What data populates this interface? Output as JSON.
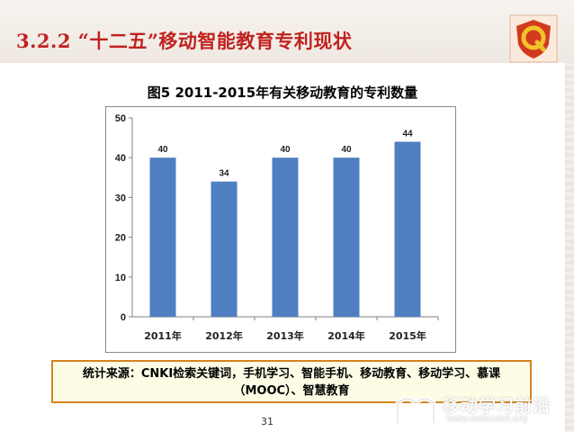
{
  "slide": {
    "heading": "3.2.2 “十二五”移动智能教育专利现状",
    "page_number": "31",
    "source_note": "统计来源：CNKI检索关键词，手机学习、智能手机、移动教育、移动学习、慕课（MOOC）、智慧教育",
    "watermark": "移动学习前沿",
    "watermark_url": "www.weixuexi.org"
  },
  "colors": {
    "heading": "#c0221f",
    "bar": "#4f7fc0",
    "box_border": "#d4841f"
  },
  "chart_data": {
    "type": "bar",
    "title": "图5  2011-2015年有关移动教育的专利数量",
    "xlabel": "",
    "ylabel": "",
    "categories": [
      "2011年",
      "2012年",
      "2013年",
      "2014年",
      "2015年"
    ],
    "values": [
      40,
      34,
      40,
      40,
      44
    ],
    "ylim": [
      0,
      50
    ],
    "yticks": [
      0,
      10,
      20,
      30,
      40,
      50
    ],
    "grid": false,
    "legend": "none",
    "data_labels": true
  }
}
